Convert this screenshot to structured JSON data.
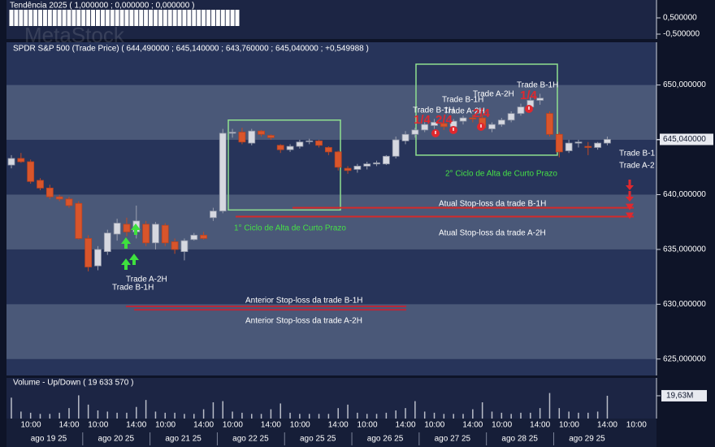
{
  "chart_data": {
    "type": "candlestick",
    "watermark": "MetaStock",
    "title": "SPDR S&P 500 (Trade Price) ( 644,490000 ; 645,140000 ; 643,760000 ; 645,040000 ; +0,549988 )",
    "up_color": "#d6d8e0",
    "down_color": "#d9552b",
    "candles": [
      [
        642.7,
        643.6,
        642.4,
        643.3
      ],
      [
        643.3,
        643.8,
        642.9,
        643.0
      ],
      [
        643.0,
        643.2,
        641.0,
        641.2
      ],
      [
        641.3,
        641.5,
        640.4,
        640.6
      ],
      [
        640.6,
        640.9,
        639.6,
        639.8
      ],
      [
        639.8,
        640.0,
        639.4,
        639.6
      ],
      [
        639.6,
        639.8,
        638.8,
        639.0
      ],
      [
        639.2,
        639.4,
        635.9,
        636.0
      ],
      [
        636.0,
        636.3,
        633.0,
        633.4
      ],
      [
        633.5,
        635.3,
        633.1,
        635.0
      ],
      [
        634.8,
        636.8,
        634.5,
        636.5
      ],
      [
        636.4,
        637.8,
        635.8,
        637.4
      ],
      [
        637.3,
        637.9,
        636.2,
        636.6
      ],
      [
        636.6,
        639.0,
        636.0,
        637.6
      ],
      [
        637.3,
        637.6,
        635.3,
        635.6
      ],
      [
        635.6,
        637.5,
        635.0,
        637.3
      ],
      [
        637.2,
        637.4,
        635.3,
        635.6
      ],
      [
        635.7,
        636.0,
        634.6,
        635.0
      ],
      [
        634.8,
        636.0,
        634.0,
        635.8
      ],
      [
        635.9,
        636.5,
        635.8,
        636.3
      ],
      [
        636.3,
        636.6,
        635.9,
        636.0
      ],
      [
        637.9,
        638.8,
        637.6,
        638.5
      ],
      [
        638.5,
        646.0,
        638.3,
        645.6
      ],
      [
        645.6,
        646.0,
        645.2,
        645.7
      ],
      [
        645.7,
        646.1,
        644.6,
        644.8
      ],
      [
        644.7,
        646.0,
        644.5,
        645.8
      ],
      [
        645.8,
        645.9,
        645.3,
        645.5
      ],
      [
        645.4,
        645.5,
        645.0,
        645.2
      ],
      [
        644.5,
        644.6,
        643.8,
        644.1
      ],
      [
        644.1,
        644.6,
        643.9,
        644.4
      ],
      [
        644.4,
        645.0,
        644.2,
        644.8
      ],
      [
        644.9,
        645.1,
        644.6,
        644.9
      ],
      [
        644.9,
        645.0,
        644.3,
        644.5
      ],
      [
        644.3,
        644.4,
        643.6,
        643.9
      ],
      [
        643.9,
        644.0,
        642.2,
        642.5
      ],
      [
        642.4,
        642.6,
        641.9,
        642.2
      ],
      [
        642.3,
        642.8,
        642.0,
        642.6
      ],
      [
        642.6,
        643.0,
        642.3,
        642.8
      ],
      [
        642.8,
        643.1,
        642.6,
        642.9
      ],
      [
        642.8,
        643.6,
        642.7,
        643.5
      ],
      [
        643.5,
        645.3,
        643.3,
        645.0
      ],
      [
        644.9,
        645.8,
        644.6,
        645.5
      ],
      [
        645.5,
        646.1,
        645.2,
        645.9
      ],
      [
        645.9,
        646.6,
        645.7,
        646.4
      ],
      [
        646.3,
        646.9,
        646.0,
        646.6
      ],
      [
        646.5,
        646.8,
        645.9,
        646.2
      ],
      [
        646.2,
        646.9,
        646.0,
        646.7
      ],
      [
        646.7,
        647.2,
        646.4,
        647.0
      ],
      [
        647.0,
        647.3,
        646.6,
        646.9
      ],
      [
        647.0,
        647.3,
        645.9,
        646.1
      ],
      [
        646.0,
        646.6,
        645.7,
        646.4
      ],
      [
        646.4,
        647.0,
        646.2,
        646.8
      ],
      [
        646.8,
        647.6,
        646.6,
        647.4
      ],
      [
        647.4,
        648.3,
        647.2,
        648.0
      ],
      [
        648.0,
        648.9,
        647.8,
        648.6
      ],
      [
        648.6,
        649.2,
        648.2,
        648.8
      ],
      [
        647.4,
        647.6,
        645.3,
        645.5
      ],
      [
        645.5,
        645.7,
        643.4,
        643.9
      ],
      [
        644.0,
        645.0,
        643.8,
        644.7
      ],
      [
        644.7,
        645.0,
        644.3,
        644.8
      ],
      [
        644.4,
        644.8,
        643.6,
        644.3
      ],
      [
        644.3,
        644.8,
        644.1,
        644.7
      ],
      [
        644.7,
        645.3,
        644.5,
        645.04
      ]
    ],
    "ylim": [
      623.5,
      653.9
    ],
    "yticks": [
      {
        "value": 625,
        "label": "625,000000"
      },
      {
        "value": 630,
        "label": "630,000000"
      },
      {
        "value": 635,
        "label": "635,000000"
      },
      {
        "value": 640,
        "label": "640,000000"
      },
      {
        "value": 645,
        "label": "645,000000"
      },
      {
        "value": 650,
        "label": "650,000000"
      }
    ],
    "last_price": {
      "value": 645.04,
      "label": "645,040000"
    },
    "levels": [
      {
        "label": "Atual Stop-loss da trade B-1H",
        "value": 638.8,
        "color": "#d42a2a"
      },
      {
        "label": "Atual Stop-loss da trade A-2H",
        "value": 638.0,
        "color": "#d42a2a"
      },
      {
        "label": "Anterior Stop-loss da trade B-1H",
        "value": 629.8,
        "color": "#b8283a"
      },
      {
        "label": "Anterior Stop-loss da trade A-2H",
        "value": 629.5,
        "color": "#b8283a"
      }
    ],
    "boxes": [
      {
        "label": "1° Ciclo de Alta de Curto Prazo",
        "high": 646.8,
        "low": 638.6,
        "color": "#8fe08f"
      },
      {
        "label": "2° Ciclo de Alta de Curto Prazo",
        "high": 651.9,
        "low": 643.6,
        "color": "#8fe08f"
      }
    ],
    "annotations": [
      {
        "text": "Trade A-2H",
        "color": "#ffffff"
      },
      {
        "text": "Trade B-1H",
        "color": "#ffffff"
      },
      {
        "text": "Trade B-1H",
        "color": "#ffffff"
      },
      {
        "text": "Trade A-2H",
        "color": "#ffffff"
      },
      {
        "text": "Trade B-1H",
        "color": "#ffffff"
      },
      {
        "text": "Trade A-2H",
        "color": "#ffffff"
      },
      {
        "text": "Trade B-1H",
        "color": "#ffffff"
      },
      {
        "text": "1/4",
        "color": "#e0282e"
      },
      {
        "text": "2/4",
        "color": "#e0282e"
      },
      {
        "text": "2/4",
        "color": "#e0282e"
      },
      {
        "text": "1/4",
        "color": "#e0282e"
      },
      {
        "text": "Trade B-1",
        "color": "#ffffff"
      },
      {
        "text": "Trade A-2",
        "color": "#ffffff"
      }
    ],
    "trend": {
      "title": "Tendência 2025 ( 1,000000 ; 0,000000 ; 0,000000 )",
      "values": [
        1,
        1,
        1,
        1,
        1,
        1,
        1,
        1,
        1,
        1,
        1,
        1,
        1,
        1,
        1,
        1,
        1,
        1,
        1,
        1,
        1,
        1,
        1,
        1,
        0,
        0,
        0,
        0,
        0,
        0,
        0,
        0,
        0,
        0,
        0,
        0,
        0,
        0,
        0,
        0,
        0,
        0,
        0,
        0,
        0,
        0,
        0,
        0,
        0,
        0,
        0,
        0,
        0,
        0,
        0,
        0,
        0,
        0,
        0,
        0,
        0,
        0,
        0
      ],
      "color": "#ffffff",
      "ylim": [
        -0.8,
        1.6
      ],
      "yticks": [
        {
          "value": 0.5,
          "label": "0,500000"
        },
        {
          "value": -0.5,
          "label": "-0,500000"
        }
      ]
    },
    "volume": {
      "title": "Volume - Up/Down ( 19 633 570 )",
      "values": [
        18,
        6,
        5,
        4,
        4,
        5,
        9,
        20,
        12,
        7,
        6,
        5,
        5,
        10,
        16,
        6,
        5,
        5,
        4,
        4,
        8,
        14,
        15,
        6,
        5,
        4,
        4,
        8,
        13,
        5,
        4,
        4,
        4,
        4,
        9,
        12,
        5,
        4,
        4,
        5,
        7,
        9,
        15,
        6,
        5,
        4,
        4,
        4,
        8,
        14,
        6,
        5,
        4,
        5,
        5,
        9,
        22,
        9,
        6,
        5,
        5,
        6,
        19.63
      ],
      "color": "#b9bdc8",
      "ylim": [
        0,
        35
      ],
      "yticks": [
        {
          "value": 19.63,
          "label": "19,63M"
        }
      ]
    },
    "time_labels": [
      "10:00",
      "14:00",
      "10:00",
      "14:00",
      "10:00",
      "14:00",
      "10:00",
      "14:00",
      "10:00",
      "14:00",
      "10:00",
      "14:00",
      "10:00",
      "14:00",
      "10:00",
      "14:00",
      "10:00",
      "14:00",
      "10:00"
    ],
    "date_labels": [
      "ago 19 25",
      "ago 20 25",
      "ago 21 25",
      "ago 22 25",
      "ago 25 25",
      "ago 26 25",
      "ago 27 25",
      "ago 28 25",
      "ago 29 25"
    ]
  }
}
